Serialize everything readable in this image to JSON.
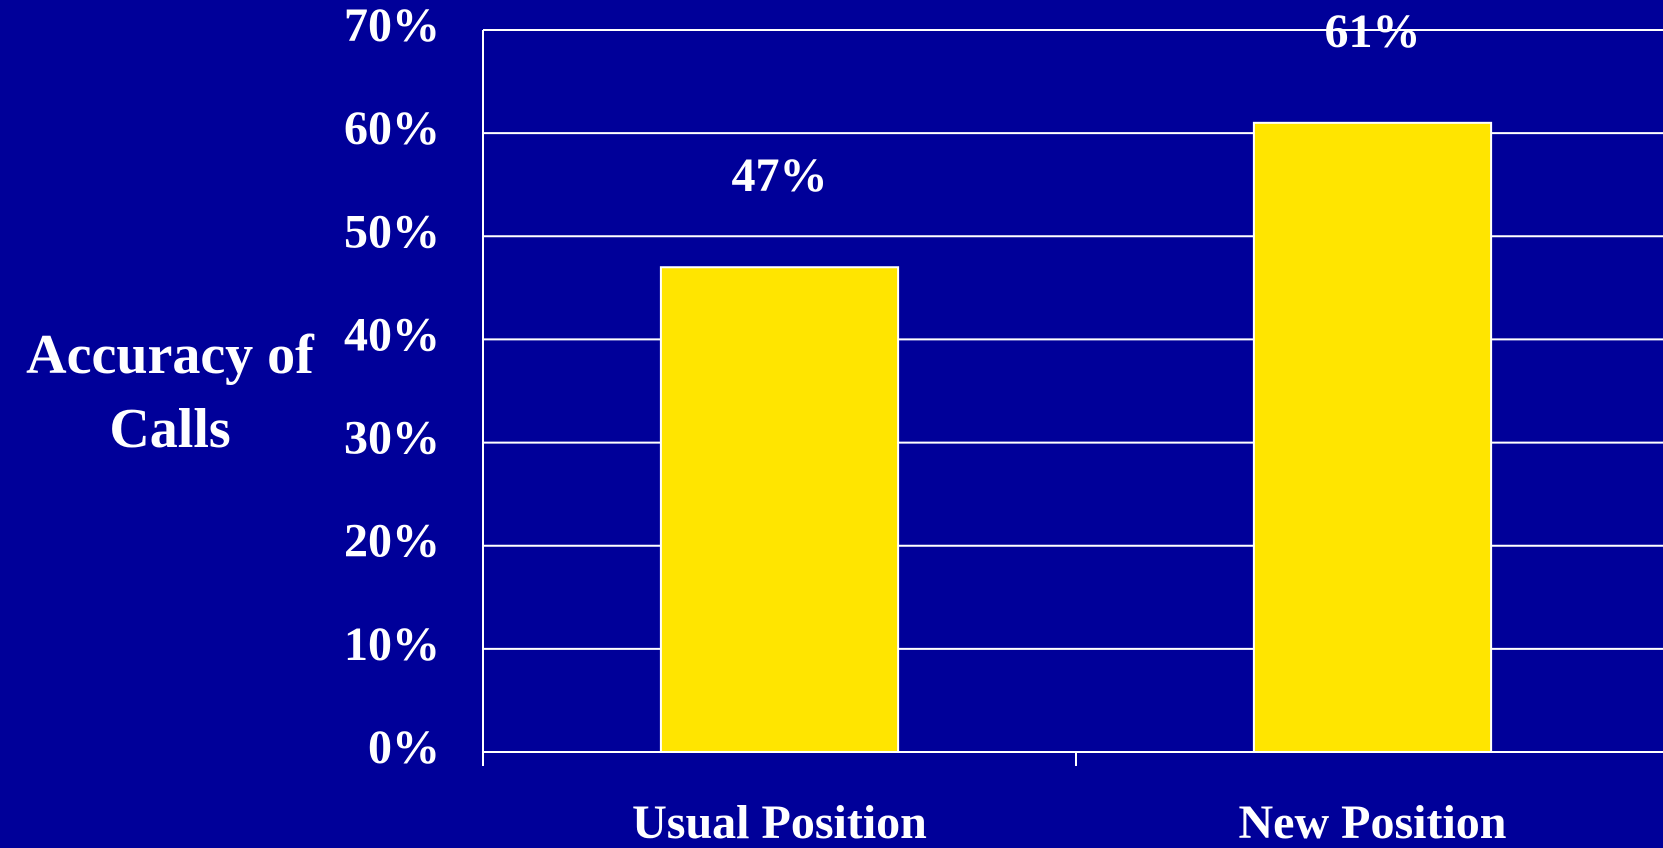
{
  "chart_data": {
    "type": "bar",
    "y_label": "Accuracy of Calls",
    "categories": [
      "Usual Position",
      "New Position"
    ],
    "values": [
      47,
      61
    ],
    "value_labels": [
      "47%",
      "61%"
    ],
    "color": "#ffe500",
    "ylim": [
      0,
      70
    ],
    "yticks": [
      {
        "value": 0,
        "label": "0%"
      },
      {
        "value": 10,
        "label": "10%"
      },
      {
        "value": 20,
        "label": "20%"
      },
      {
        "value": 30,
        "label": "30%"
      },
      {
        "value": 40,
        "label": "40%"
      },
      {
        "value": 50,
        "label": "50%"
      },
      {
        "value": 60,
        "label": "60%"
      },
      {
        "value": 70,
        "label": "70%"
      }
    ],
    "grid": true
  }
}
